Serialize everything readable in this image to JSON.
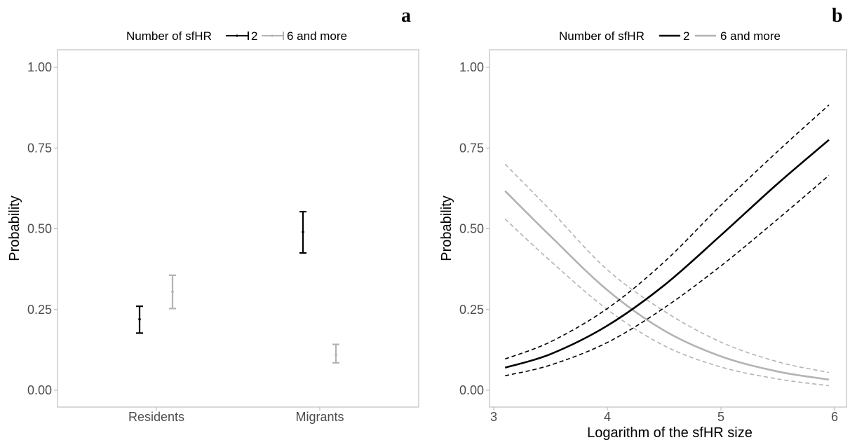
{
  "chart_data": [
    {
      "type": "errorbar",
      "panel_letter": "a",
      "ylabel": "Probability",
      "ylim": [
        0,
        1
      ],
      "yticks": [
        "0.00",
        "0.25",
        "0.50",
        "0.75",
        "1.00"
      ],
      "categories": [
        "Residents",
        "Migrants"
      ],
      "legend": {
        "title": "Number of sfHR",
        "entries": [
          "2",
          "6 and more"
        ],
        "position": "top"
      },
      "grid": false,
      "series": [
        {
          "name": "2",
          "color": "#000000",
          "values": [
            0.22,
            0.49
          ],
          "lower": [
            0.177,
            0.425
          ],
          "upper": [
            0.26,
            0.553
          ]
        },
        {
          "name": "6 and more",
          "color": "#b3b3b3",
          "values": [
            0.305,
            0.11
          ],
          "lower": [
            0.253,
            0.085
          ],
          "upper": [
            0.356,
            0.142
          ]
        }
      ]
    },
    {
      "type": "line",
      "panel_letter": "b",
      "xlabel": "Logarithm of the sfHR size",
      "ylabel": "Probability",
      "xlim": [
        3.1,
        5.95
      ],
      "ylim": [
        0,
        1
      ],
      "xticks": [
        "3",
        "4",
        "5",
        "6"
      ],
      "yticks": [
        "0.00",
        "0.25",
        "0.50",
        "0.75",
        "1.00"
      ],
      "legend": {
        "title": "Number of sfHR",
        "entries": [
          "2",
          "6 and more"
        ],
        "position": "top"
      },
      "grid": false,
      "x": [
        3.1,
        3.5,
        4.0,
        4.5,
        5.0,
        5.5,
        5.95
      ],
      "series": [
        {
          "name": "2",
          "color": "#000000",
          "values": [
            0.07,
            0.112,
            0.2,
            0.325,
            0.48,
            0.64,
            0.775
          ],
          "lower": [
            0.045,
            0.078,
            0.148,
            0.255,
            0.385,
            0.53,
            0.665
          ],
          "upper": [
            0.097,
            0.15,
            0.253,
            0.397,
            0.573,
            0.74,
            0.883
          ]
        },
        {
          "name": "6 and more",
          "color": "#b3b3b3",
          "values": [
            0.617,
            0.477,
            0.31,
            0.185,
            0.105,
            0.058,
            0.033
          ],
          "lower": [
            0.53,
            0.4,
            0.25,
            0.138,
            0.072,
            0.035,
            0.014
          ],
          "upper": [
            0.7,
            0.557,
            0.373,
            0.245,
            0.149,
            0.088,
            0.055
          ]
        }
      ]
    }
  ]
}
